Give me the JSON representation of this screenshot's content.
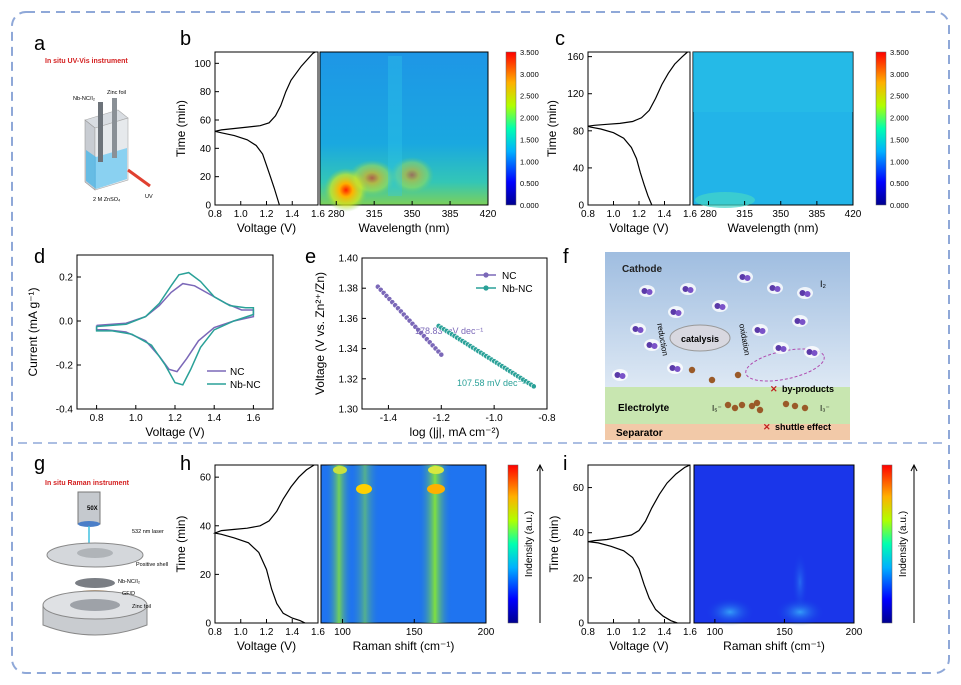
{
  "colors": {
    "frame": "#8fa8d8",
    "nc": "#7b68b8",
    "nbnc": "#2aa198",
    "axis": "#000000"
  },
  "panel_a": {
    "letter": "a",
    "title": "In situ UV-Vis instrument",
    "label_left": "Nb-NC/I₂",
    "label_right": "Zinc foil",
    "label_bottom": "2 M ZnSO₄",
    "label_uv": "UV"
  },
  "panel_b": {
    "letter": "b"
  },
  "panel_c": {
    "letter": "c"
  },
  "panel_d": {
    "letter": "d"
  },
  "panel_e": {
    "letter": "e"
  },
  "panel_f": {
    "letter": "f",
    "cathode": "Cathode",
    "i2": "I₂",
    "reduction": "reduction",
    "oxidation": "oxidation",
    "catalysis": "catalysis",
    "byproducts": "by-products",
    "electrolyte": "Electrolyte",
    "i5": "I₅⁻",
    "i3": "I₃⁻",
    "separator": "Separator",
    "shuttle": "shuttle effect"
  },
  "panel_g": {
    "letter": "g",
    "title": "In situ Raman instrument",
    "lens": "50X",
    "laser": "532 nm laser",
    "shell": "Positive shell",
    "cathode": "Nb-NC/I₂",
    "gfd": "GF/D",
    "zinc": "Zinc foil"
  },
  "panel_h": {
    "letter": "h"
  },
  "panel_i": {
    "letter": "i"
  },
  "chart_data": [
    {
      "id": "b-voltage",
      "type": "line",
      "xlabel": "Voltage (V)",
      "ylabel": "Time (min)",
      "xlim": [
        0.8,
        1.6
      ],
      "ylim": [
        0,
        108
      ],
      "xticks": [
        "0.8",
        "1.0",
        "1.2",
        "1.4",
        "1.6"
      ],
      "yticks": [
        "0",
        "20",
        "40",
        "60",
        "80",
        "100"
      ],
      "series": [
        {
          "x": [
            1.3,
            1.28,
            1.26,
            1.23,
            1.2,
            1.17,
            1.12,
            1.05,
            0.95,
            0.85,
            0.8,
            0.85,
            0.95,
            1.05,
            1.15,
            1.22,
            1.27,
            1.31,
            1.35,
            1.39,
            1.43,
            1.47,
            1.52,
            1.56,
            1.58
          ],
          "y": [
            0,
            6,
            12,
            20,
            28,
            36,
            42,
            46,
            49,
            51,
            52,
            53,
            54,
            55,
            56,
            58,
            63,
            70,
            80,
            88,
            93,
            98,
            103,
            107,
            108
          ]
        }
      ]
    },
    {
      "id": "b-map",
      "type": "heatmap",
      "xlabel": "Wavelength (nm)",
      "xlim": [
        265,
        420
      ],
      "xticks": [
        "280",
        "315",
        "350",
        "385",
        "420"
      ],
      "colorbar_ticks": [
        "3.500",
        "3.000",
        "2.500",
        "2.000",
        "1.500",
        "1.000",
        "0.500",
        "0.000"
      ]
    },
    {
      "id": "c-voltage",
      "type": "line",
      "xlabel": "Voltage (V)",
      "ylabel": "Time (min)",
      "xlim": [
        0.8,
        1.6
      ],
      "ylim": [
        0,
        165
      ],
      "xticks": [
        "0.8",
        "1.0",
        "1.2",
        "1.4",
        "1.6"
      ],
      "yticks": [
        "0",
        "40",
        "80",
        "120",
        "160"
      ],
      "series": [
        {
          "x": [
            1.3,
            1.27,
            1.24,
            1.21,
            1.18,
            1.14,
            1.08,
            1.0,
            0.9,
            0.82,
            0.8,
            0.85,
            0.95,
            1.05,
            1.15,
            1.22,
            1.28,
            1.33,
            1.38,
            1.43,
            1.48,
            1.54,
            1.58
          ],
          "y": [
            0,
            10,
            22,
            35,
            50,
            62,
            72,
            78,
            82,
            84,
            85,
            86,
            87,
            88,
            90,
            94,
            102,
            115,
            130,
            142,
            152,
            160,
            165
          ]
        }
      ]
    },
    {
      "id": "c-map",
      "type": "heatmap",
      "xlabel": "Wavelength (nm)",
      "xlim": [
        265,
        420
      ],
      "xticks": [
        "280",
        "315",
        "350",
        "385",
        "420"
      ],
      "colorbar_ticks": [
        "3.500",
        "3.000",
        "2.500",
        "2.000",
        "1.500",
        "1.000",
        "0.500",
        "0.000"
      ]
    },
    {
      "id": "d-cv",
      "type": "line",
      "xlabel": "Voltage (V)",
      "ylabel": "Current  (mA g⁻¹)",
      "xlim": [
        0.7,
        1.7
      ],
      "ylim": [
        -0.4,
        0.3
      ],
      "xticks": [
        "0.8",
        "1.0",
        "1.2",
        "1.4",
        "1.6"
      ],
      "yticks": [
        "-0.4",
        "-0.2",
        "0.0",
        "0.2"
      ],
      "series": [
        {
          "name": "NC",
          "x": [
            0.8,
            0.95,
            1.05,
            1.12,
            1.18,
            1.24,
            1.3,
            1.38,
            1.46,
            1.54,
            1.6,
            1.6,
            1.5,
            1.4,
            1.32,
            1.26,
            1.21,
            1.17,
            1.12,
            1.05,
            0.95,
            0.85,
            0.8,
            0.8
          ],
          "y": [
            -0.02,
            -0.01,
            0.02,
            0.07,
            0.13,
            0.17,
            0.16,
            0.12,
            0.08,
            0.05,
            0.05,
            0.02,
            0.0,
            -0.03,
            -0.09,
            -0.17,
            -0.23,
            -0.22,
            -0.16,
            -0.09,
            -0.05,
            -0.04,
            -0.04,
            -0.02
          ]
        },
        {
          "name": "Nb-NC",
          "x": [
            0.8,
            0.95,
            1.05,
            1.12,
            1.18,
            1.22,
            1.27,
            1.33,
            1.4,
            1.48,
            1.56,
            1.6,
            1.6,
            1.5,
            1.4,
            1.33,
            1.28,
            1.24,
            1.2,
            1.15,
            1.08,
            0.98,
            0.88,
            0.8,
            0.8
          ],
          "y": [
            -0.025,
            -0.015,
            0.02,
            0.08,
            0.16,
            0.21,
            0.22,
            0.18,
            0.11,
            0.07,
            0.06,
            0.06,
            0.03,
            0.0,
            -0.04,
            -0.12,
            -0.22,
            -0.29,
            -0.28,
            -0.2,
            -0.11,
            -0.06,
            -0.045,
            -0.045,
            -0.025
          ]
        }
      ]
    },
    {
      "id": "e-tafel",
      "type": "line",
      "xlabel": "log (|j|, mA cm⁻²)",
      "ylabel": "Voltage (V vs. Zn²⁺/Zn)",
      "xlim": [
        -1.5,
        -0.8
      ],
      "ylim": [
        1.3,
        1.4
      ],
      "xticks": [
        "-1.4",
        "-1.2",
        "-1.0",
        "-0.8"
      ],
      "yticks": [
        "1.30",
        "1.32",
        "1.34",
        "1.36",
        "1.38",
        "1.40"
      ],
      "series": [
        {
          "name": "NC",
          "x": [
            -1.44,
            -1.2
          ],
          "y": [
            1.381,
            1.336
          ],
          "annotation": "178.83 mV dec⁻¹"
        },
        {
          "name": "Nb-NC",
          "x": [
            -1.21,
            -0.85
          ],
          "y": [
            1.355,
            1.315
          ],
          "annotation": "107.58 mV dec⁻¹"
        }
      ]
    },
    {
      "id": "h-voltage",
      "type": "line",
      "xlabel": "Voltage (V)",
      "ylabel": "Time (min)",
      "xlim": [
        0.8,
        1.6
      ],
      "ylim": [
        0,
        65
      ],
      "xticks": [
        "0.8",
        "1.0",
        "1.2",
        "1.4",
        "1.6"
      ],
      "yticks": [
        "0",
        "20",
        "40",
        "60"
      ],
      "series": [
        {
          "x": [
            1.5,
            1.46,
            1.4,
            1.33,
            1.28,
            1.24,
            1.2,
            1.14,
            1.06,
            0.95,
            0.85,
            0.8,
            0.85,
            0.95,
            1.05,
            1.15,
            1.22,
            1.28,
            1.33,
            1.39,
            1.45,
            1.51,
            1.57
          ],
          "y": [
            0,
            1,
            2,
            4,
            8,
            14,
            22,
            29,
            33,
            35,
            36.5,
            37,
            38,
            38.5,
            39,
            40,
            42,
            46,
            51,
            56,
            60,
            63,
            65
          ]
        }
      ]
    },
    {
      "id": "h-map",
      "type": "heatmap",
      "xlabel": "Raman shift (cm⁻¹)",
      "ylabel": "Indensity (a.u.)",
      "xlim": [
        85,
        200
      ],
      "xticks": [
        "100",
        "150",
        "200"
      ]
    },
    {
      "id": "i-voltage",
      "type": "line",
      "xlabel": "Voltage (V)",
      "ylabel": "Time (min)",
      "xlim": [
        0.8,
        1.6
      ],
      "ylim": [
        0,
        70
      ],
      "xticks": [
        "0.8",
        "1.0",
        "1.2",
        "1.4",
        "1.6"
      ],
      "yticks": [
        "0",
        "20",
        "40",
        "60"
      ],
      "series": [
        {
          "x": [
            1.5,
            1.45,
            1.39,
            1.33,
            1.28,
            1.24,
            1.2,
            1.15,
            1.08,
            0.98,
            0.88,
            0.8,
            0.85,
            0.95,
            1.05,
            1.14,
            1.2,
            1.25,
            1.3,
            1.36,
            1.42,
            1.49,
            1.56,
            1.6
          ],
          "y": [
            0,
            1,
            3,
            6,
            11,
            17,
            24,
            29,
            32,
            34,
            35.5,
            36,
            36.5,
            37,
            38,
            39,
            41,
            45,
            51,
            57,
            62,
            66,
            69,
            70
          ]
        }
      ]
    },
    {
      "id": "i-map",
      "type": "heatmap",
      "xlabel": "Raman shift (cm⁻¹)",
      "ylabel": "Indensity (a.u.)",
      "xlim": [
        85,
        200
      ],
      "xticks": [
        "100",
        "150",
        "200"
      ]
    }
  ]
}
